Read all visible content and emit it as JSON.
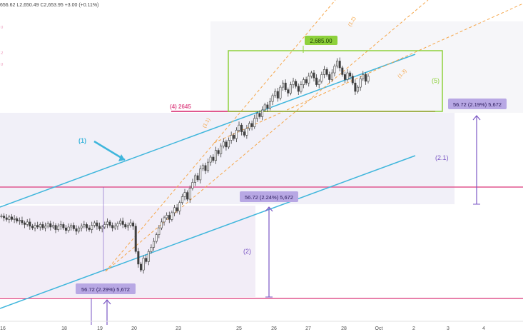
{
  "header": {
    "ohlc_text": "656.62  L2,650.49  C2,653.95  +3.00 (+0.11%)",
    "side_digits": [
      "0",
      "2",
      "0"
    ]
  },
  "colors": {
    "candle": "#3d3d3d",
    "channel": "#3fb6dc",
    "pink": "#e0578f",
    "purple": "#7a56c4",
    "orange": "#f5a64a",
    "green": "#8ed13c",
    "label_bg": "#b8a8e4"
  },
  "chart_data": {
    "type": "candlestick",
    "xaxis": {
      "tick_labels": [
        "16",
        "18",
        "19",
        "20",
        "23",
        "25",
        "26",
        "27",
        "28",
        "Oct",
        "2",
        "3",
        "4"
      ]
    },
    "annotations": {
      "peak_label": "2,685.00",
      "level_label": "(4) 2645",
      "wave_labels": [
        "(1)",
        "(2)",
        "(2.1)",
        "(5)",
        "(1.1)",
        "(1.2)",
        "(1.3)"
      ],
      "measure_labels": [
        "56.72 (2.19%) 5,672",
        "56.72 (2.24%) 5,672",
        "56.72 (2.29%) 5,672"
      ]
    },
    "price_path": [
      2,
      0,
      -2,
      1,
      -2,
      -1,
      -4,
      -3,
      -6,
      -8,
      -5,
      -10,
      -12,
      -9,
      -11,
      -8,
      -12,
      -10,
      -7,
      -11,
      -9,
      -14,
      -10,
      -8,
      -12,
      -15,
      -11,
      -9,
      -13,
      -16,
      -12,
      -10,
      -8,
      -12,
      -14,
      -9,
      -6,
      -10,
      -13,
      -11,
      -8,
      -5,
      -9,
      -12,
      -10,
      -7,
      -4,
      -8,
      -11,
      -9,
      -6,
      -10,
      -40,
      -55,
      -62,
      -48,
      -52,
      -40,
      -35,
      -28,
      -20,
      -12,
      -5,
      0,
      3,
      -2,
      6,
      12,
      8,
      18,
      25,
      30,
      22,
      35,
      42,
      50,
      45,
      58,
      62,
      56,
      66,
      72,
      68,
      80,
      76,
      85,
      90,
      84,
      92,
      98,
      94,
      104,
      110,
      102,
      98,
      106,
      112,
      108,
      118,
      124,
      120,
      128,
      134,
      130,
      138,
      145,
      150,
      142,
      155,
      160,
      152,
      148,
      158,
      162,
      156,
      150,
      158,
      164,
      160,
      168,
      172,
      166,
      158,
      162,
      170,
      176,
      170,
      164,
      172,
      180,
      186,
      178,
      170,
      164,
      172,
      168,
      160,
      150,
      155,
      165,
      170,
      162,
      168
    ]
  }
}
